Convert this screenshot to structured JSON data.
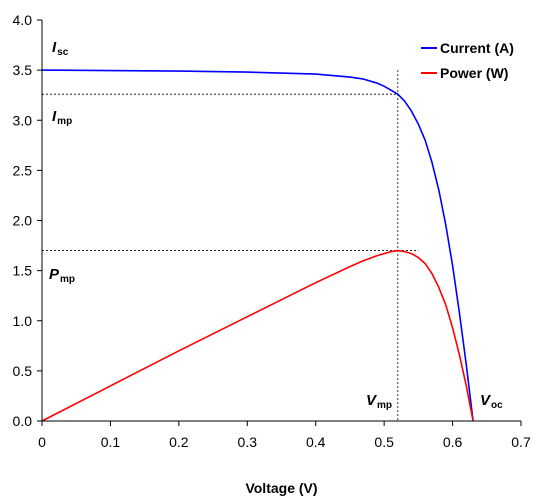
{
  "chart_data": {
    "type": "line",
    "xlabel": "Voltage (V)",
    "ylabel": "",
    "xlim": [
      0,
      0.7
    ],
    "ylim": [
      0,
      4.0
    ],
    "x_ticks": [
      "0",
      "0.1",
      "0.2",
      "0.3",
      "0.4",
      "0.5",
      "0.6",
      "0.7"
    ],
    "y_ticks": [
      "0.0",
      "0.5",
      "1.0",
      "1.5",
      "2.0",
      "2.5",
      "3.0",
      "3.5",
      "4.0"
    ],
    "grid": false,
    "legend_position": "top-right",
    "series": [
      {
        "name": "Current (A)",
        "color": "#0000ff",
        "x": [
          0,
          0.1,
          0.2,
          0.3,
          0.4,
          0.45,
          0.47,
          0.49,
          0.5,
          0.51,
          0.52,
          0.53,
          0.54,
          0.55,
          0.56,
          0.57,
          0.58,
          0.59,
          0.6,
          0.61,
          0.62,
          0.63
        ],
        "y": [
          3.5,
          3.495,
          3.49,
          3.48,
          3.46,
          3.43,
          3.41,
          3.37,
          3.34,
          3.3,
          3.26,
          3.19,
          3.09,
          2.96,
          2.8,
          2.58,
          2.3,
          1.96,
          1.55,
          1.08,
          0.56,
          0.0
        ]
      },
      {
        "name": "Power (W)",
        "color": "#ff0000",
        "x": [
          0,
          0.1,
          0.2,
          0.3,
          0.4,
          0.45,
          0.47,
          0.49,
          0.5,
          0.51,
          0.52,
          0.53,
          0.54,
          0.55,
          0.56,
          0.57,
          0.58,
          0.59,
          0.6,
          0.61,
          0.62,
          0.63
        ],
        "y": [
          0.0,
          0.35,
          0.7,
          1.04,
          1.38,
          1.54,
          1.6,
          1.65,
          1.67,
          1.69,
          1.7,
          1.69,
          1.67,
          1.63,
          1.57,
          1.47,
          1.33,
          1.16,
          0.93,
          0.66,
          0.35,
          0.0
        ]
      }
    ],
    "reference_lines": [
      {
        "orientation": "horizontal",
        "value": 3.26,
        "x_end": 0.52
      },
      {
        "orientation": "horizontal",
        "value": 1.7,
        "x_end": 0.55
      },
      {
        "orientation": "vertical",
        "value": 0.52,
        "y_end": 3.5
      }
    ],
    "annotations": {
      "isc": {
        "main": "I",
        "sub": "sc"
      },
      "imp": {
        "main": "I",
        "sub": "mp"
      },
      "pmp": {
        "main": "P",
        "sub": "mp"
      },
      "vmp": {
        "main": "V",
        "sub": "mp"
      },
      "voc": {
        "main": "V",
        "sub": "oc"
      }
    }
  }
}
